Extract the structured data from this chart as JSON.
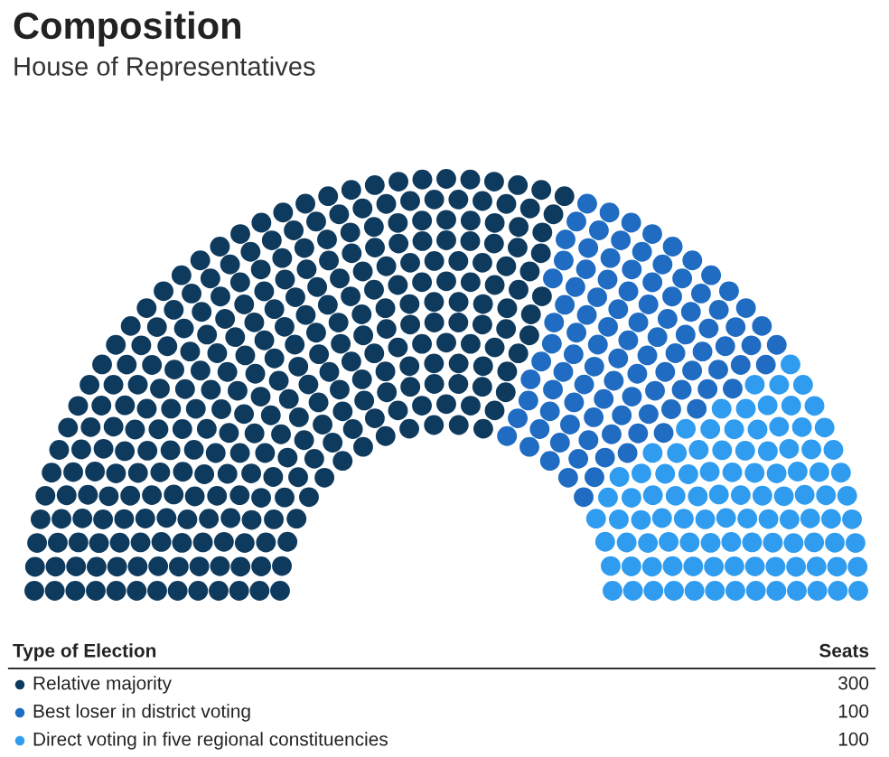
{
  "chart_data": {
    "type": "other",
    "title": "Composition",
    "subtitle": "House of Representatives",
    "legend_title": "Type of Election",
    "annotations": [
      "Seats"
    ],
    "categories": [
      "Relative majority",
      "Best loser in district voting",
      "Direct voting in five regional constituencies"
    ],
    "values": [
      300,
      100,
      100
    ],
    "colors": [
      "#0e3a5e",
      "#1f6cc2",
      "#2f9cef"
    ],
    "data_labels": true
  }
}
